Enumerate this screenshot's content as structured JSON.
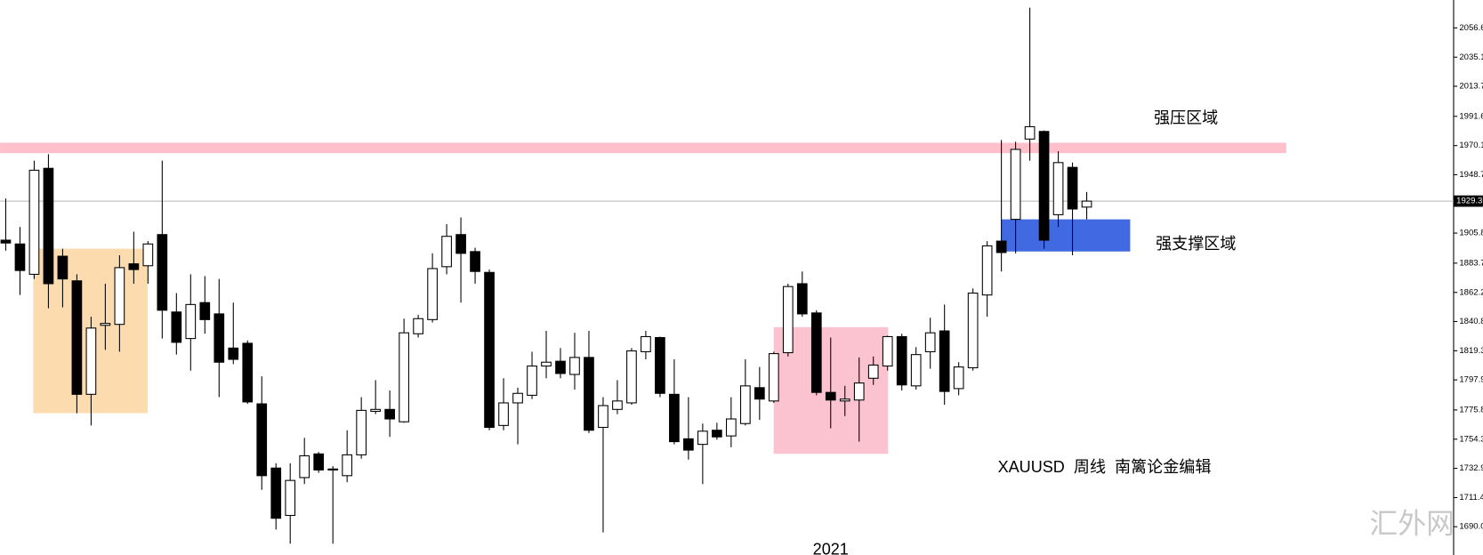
{
  "chart_data": {
    "type": "candlestick",
    "annotations": [
      "强压区域",
      "强支撑区域",
      "XAUUSD  周线  南篱论金编辑"
    ],
    "watermark": "汇外网",
    "up_color": "#ffffff",
    "down_color": "#000000",
    "last_price": 1929.3,
    "ylim": [
      1669.2,
      2077.1
    ],
    "yticks": [
      {
        "value": 1690,
        "label": "1690.0"
      },
      1711.4,
      1732.9,
      1754.3,
      1775.8,
      1797.9,
      1819.3,
      1840.8,
      1862.2,
      1883.7,
      1905.8,
      1948.7,
      1970.1,
      1991.6,
      2013.7,
      2035.1,
      2056.6
    ],
    "categories": [
      null,
      null,
      null,
      null,
      null,
      null,
      null,
      null,
      null,
      null,
      null,
      null,
      null,
      null,
      null,
      null,
      null,
      null,
      null,
      null,
      null,
      null,
      null,
      null,
      null,
      null,
      null,
      null,
      null,
      null,
      null,
      null,
      null,
      null,
      null,
      null,
      null,
      null,
      null,
      null,
      null,
      null,
      null,
      null,
      null,
      null,
      null,
      null,
      null,
      null,
      null,
      null,
      null,
      null,
      null,
      null,
      null,
      null,
      "2021",
      null,
      null,
      null,
      null,
      null,
      null,
      null,
      null,
      null,
      null,
      null,
      null,
      null,
      null,
      null,
      null,
      null,
      null
    ],
    "open": [
      1900.6,
      1897.8,
      1875.5,
      1953.4,
      1888.8,
      1870.7,
      1787.3,
      1838.0,
      1838.7,
      1883.2,
      1881.8,
      1904.7,
      1847.8,
      1828.3,
      1854.7,
      1846.4,
      1821.3,
      1824.8,
      1780.3,
      1733.1,
      1698.3,
      1726.1,
      1743.5,
      1731.7,
      1727.5,
      1742.8,
      1774.8,
      1776.2,
      1767.1,
      1831.8,
      1842.2,
      1881.1,
      1904.7,
      1892.2,
      1876.9,
      1764.4,
      1781.0,
      1786.6,
      1808.1,
      1811.6,
      1801.9,
      1814.4,
      1763.0,
      1776.2,
      1781.0,
      1818.6,
      1829.0,
      1787.3,
      1754.6,
      1750.5,
      1760.9,
      1756.7,
      1765.8,
      1792.2,
      1782.4,
      1817.9,
      1868.6,
      1847.1,
      1788.7,
      1782.4,
      1783.1,
      1799.1,
      1808.1,
      1829.7,
      1793.5,
      1818.6,
      1833.9,
      1791.5,
      1806.8,
      1860.3,
      1899.9,
      1915.9,
      1974.9,
      1980.5,
      1919.3,
      1954.1,
      1924.9
    ],
    "high": [
      1931.2,
      1910.3,
      1959.0,
      1963.8,
      1894.3,
      1875.5,
      1844.3,
      1868.6,
      1889.5,
      1906.8,
      1899.9,
      1959.0,
      1861.7,
      1875.5,
      1874.2,
      1872.1,
      1854.7,
      1826.9,
      1800.5,
      1736.6,
      1736.6,
      1755.3,
      1744.9,
      1734.5,
      1760.9,
      1785.2,
      1797.7,
      1790.1,
      1842.9,
      1845.7,
      1890.9,
      1912.4,
      1917.3,
      1895.0,
      1879.0,
      1799.1,
      1792.2,
      1818.6,
      1833.9,
      1821.3,
      1832.5,
      1833.9,
      1785.2,
      1797.7,
      1821.3,
      1833.9,
      1829.7,
      1813.0,
      1785.2,
      1765.8,
      1766.4,
      1785.2,
      1813.0,
      1807.4,
      1818.6,
      1868.6,
      1877.6,
      1849.1,
      1829.0,
      1793.5,
      1814.4,
      1815.1,
      1830.4,
      1831.8,
      1822.0,
      1843.6,
      1853.3,
      1810.9,
      1865.1,
      1899.9,
      1974.2,
      1972.9,
      2071.5,
      1981.2,
      1965.9,
      1957.6,
      1936.0
    ],
    "low": [
      1892.9,
      1860.3,
      1872.1,
      1850.5,
      1851.2,
      1773.4,
      1764.4,
      1820.0,
      1818.6,
      1868.6,
      1868.6,
      1828.3,
      1816.5,
      1804.7,
      1831.8,
      1785.2,
      1809.5,
      1780.3,
      1717.1,
      1687.9,
      1677.5,
      1721.3,
      1729.6,
      1677.5,
      1722.7,
      1740.0,
      1772.7,
      1756.0,
      1766.4,
      1829.0,
      1840.1,
      1875.5,
      1854.7,
      1868.6,
      1760.9,
      1760.9,
      1750.5,
      1783.8,
      1799.1,
      1799.1,
      1790.8,
      1758.8,
      1685.8,
      1772.7,
      1779.6,
      1813.0,
      1785.2,
      1750.5,
      1739.3,
      1721.3,
      1753.9,
      1748.4,
      1764.4,
      1768.5,
      1781.0,
      1815.1,
      1844.3,
      1786.6,
      1762.3,
      1771.3,
      1752.5,
      1794.2,
      1804.7,
      1790.1,
      1790.8,
      1806.1,
      1779.6,
      1786.6,
      1804.7,
      1844.3,
      1877.6,
      1890.9,
      1959.0,
      1894.3,
      1910.3,
      1889.5,
      1915.9
    ],
    "close": [
      1898.5,
      1878.3,
      1952.0,
      1868.6,
      1872.1,
      1787.3,
      1836.0,
      1839.4,
      1880.4,
      1879.0,
      1897.8,
      1849.1,
      1825.5,
      1853.3,
      1842.2,
      1810.9,
      1813.0,
      1781.7,
      1727.5,
      1696.2,
      1724.0,
      1742.1,
      1731.7,
      1732.4,
      1742.8,
      1775.5,
      1776.2,
      1769.2,
      1832.5,
      1842.9,
      1879.7,
      1903.4,
      1890.9,
      1877.6,
      1763.0,
      1781.0,
      1788.0,
      1808.1,
      1810.9,
      1802.6,
      1814.4,
      1760.9,
      1779.0,
      1782.4,
      1819.2,
      1829.7,
      1788.0,
      1752.5,
      1746.3,
      1760.2,
      1756.0,
      1769.2,
      1793.5,
      1783.8,
      1817.2,
      1866.5,
      1846.4,
      1788.7,
      1783.1,
      1783.8,
      1795.6,
      1808.8,
      1829.7,
      1794.2,
      1816.5,
      1832.5,
      1789.4,
      1807.4,
      1861.7,
      1896.4,
      1891.5,
      1967.3,
      1984.0,
      1900.6,
      1957.6,
      1923.5,
      1929.3
    ]
  }
}
